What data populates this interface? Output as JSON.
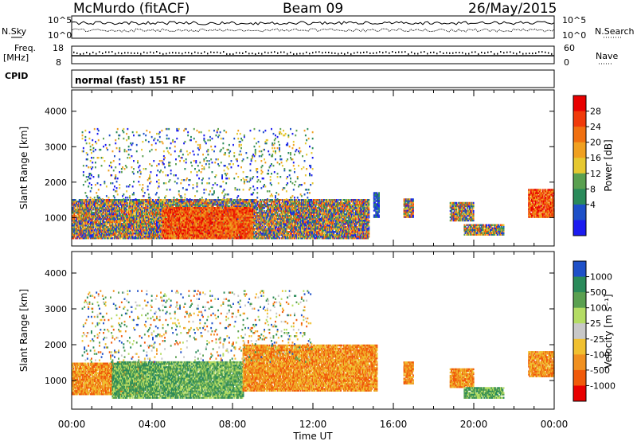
{
  "header": {
    "station": "McMurdo (fitACF)",
    "beam": "Beam 09",
    "date": "26/May/2015"
  },
  "summary": {
    "n_sky_label": "N.Sky",
    "n_search_label": "N.Search",
    "freq_label": "Freq.",
    "freq_unit": "[MHz]",
    "nave_label": "Nave",
    "cpid_label": "CPID",
    "cpid_text": "normal (fast) 151 RF",
    "n_ticks": [
      "10^5",
      "10^0"
    ],
    "freq_ticks": [
      "18",
      "8"
    ],
    "nave_ticks": [
      "60",
      "0"
    ]
  },
  "chart_data": [
    {
      "type": "heatmap",
      "name": "power",
      "xlabel": "",
      "ylabel": "Slant Range [km]",
      "xlim_hours": [
        0,
        24
      ],
      "ylim": [
        200,
        4600
      ],
      "yticks": [
        1000,
        2000,
        3000,
        4000
      ],
      "colorbar": {
        "label": "Power [dB]",
        "ticks": [
          4,
          8,
          12,
          16,
          20,
          24,
          28
        ],
        "colors": [
          "#1c1cf0",
          "#1e50c8",
          "#2a8a5a",
          "#5aa050",
          "#e6c830",
          "#f0a020",
          "#f07010",
          "#f03a0a",
          "#e80000"
        ]
      },
      "regions": [
        {
          "t0": 0.0,
          "t1": 14.8,
          "r0": 400,
          "r1": 1500,
          "level": "mid"
        },
        {
          "t0": 4.5,
          "t1": 9.0,
          "r0": 400,
          "r1": 1300,
          "level": "high"
        },
        {
          "t0": 15.0,
          "t1": 15.3,
          "r0": 1000,
          "r1": 1700,
          "level": "low"
        },
        {
          "t0": 16.5,
          "t1": 17.0,
          "r0": 1000,
          "r1": 1500,
          "level": "mid"
        },
        {
          "t0": 18.8,
          "t1": 20.0,
          "r0": 900,
          "r1": 1400,
          "level": "mid"
        },
        {
          "t0": 19.5,
          "t1": 21.5,
          "r0": 500,
          "r1": 800,
          "level": "mid"
        },
        {
          "t0": 22.7,
          "t1": 24.0,
          "r0": 1000,
          "r1": 1800,
          "level": "high"
        },
        {
          "t0": 0.5,
          "t1": 12.0,
          "r0": 1500,
          "r1": 3500,
          "level": "sparse"
        }
      ]
    },
    {
      "type": "heatmap",
      "name": "velocity",
      "xlabel": "Time UT",
      "ylabel": "Slant Range [km]",
      "xlim_hours": [
        0,
        24
      ],
      "ylim": [
        200,
        4600
      ],
      "yticks": [
        1000,
        2000,
        3000,
        4000
      ],
      "xticks": [
        "00:00",
        "04:00",
        "08:00",
        "12:00",
        "16:00",
        "20:00",
        "00:00"
      ],
      "colorbar": {
        "label": "Velocity [m s⁻¹]",
        "ticks": [
          1000,
          500,
          100,
          25,
          -25,
          -100,
          -500,
          -1000
        ],
        "colors": [
          "#1e50c8",
          "#2a8a5a",
          "#5aa050",
          "#b4dc64",
          "#c8c8c8",
          "#f0c030",
          "#f09020",
          "#f05a0a",
          "#e80000"
        ]
      },
      "regions": [
        {
          "t0": 0.0,
          "t1": 3.5,
          "r0": 600,
          "r1": 1500,
          "level": "orange"
        },
        {
          "t0": 2.0,
          "t1": 8.5,
          "r0": 500,
          "r1": 1500,
          "level": "green"
        },
        {
          "t0": 8.5,
          "t1": 15.2,
          "r0": 700,
          "r1": 2000,
          "level": "orange"
        },
        {
          "t0": 16.5,
          "t1": 17.0,
          "r0": 900,
          "r1": 1500,
          "level": "orange"
        },
        {
          "t0": 18.8,
          "t1": 20.0,
          "r0": 800,
          "r1": 1300,
          "level": "orange"
        },
        {
          "t0": 19.5,
          "t1": 21.5,
          "r0": 500,
          "r1": 800,
          "level": "green"
        },
        {
          "t0": 22.7,
          "t1": 24.0,
          "r0": 1100,
          "r1": 1800,
          "level": "orange"
        },
        {
          "t0": 0.5,
          "t1": 12.0,
          "r0": 1500,
          "r1": 3500,
          "level": "sparse"
        }
      ]
    }
  ]
}
